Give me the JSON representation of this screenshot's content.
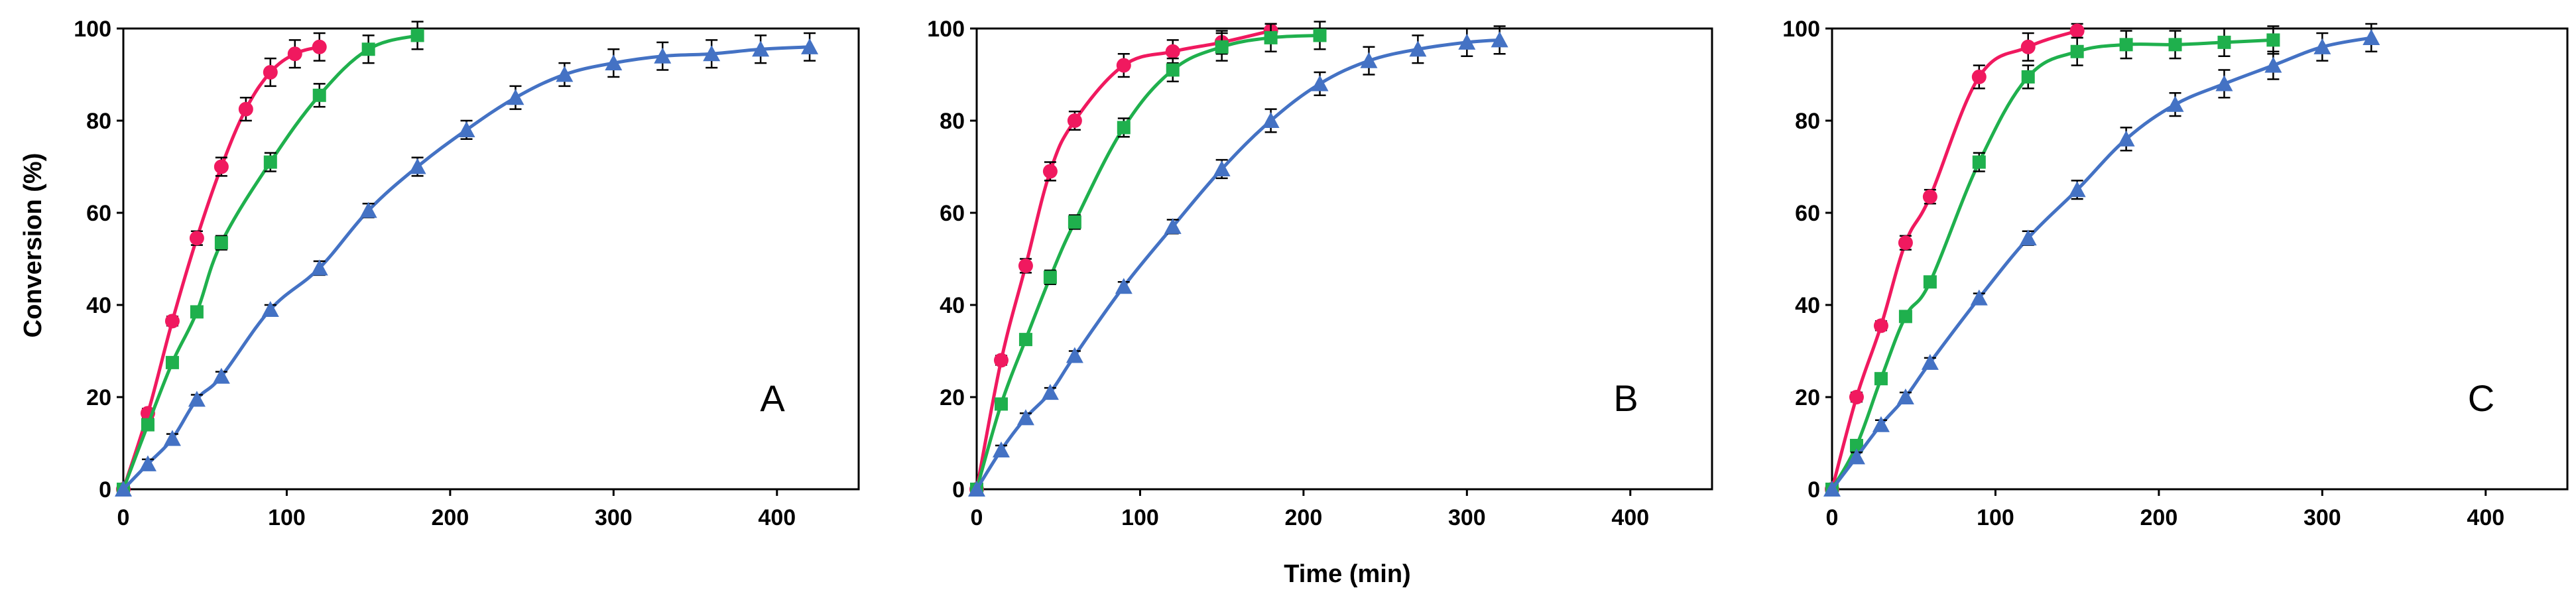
{
  "chart_data": [
    {
      "type": "line",
      "panel_label": "A",
      "xlabel": "",
      "ylabel": "Conversion (%)",
      "xlim": [
        0,
        450
      ],
      "ylim": [
        0,
        100
      ],
      "xticks": [
        "0",
        "100",
        "200",
        "300",
        "400"
      ],
      "yticks": [
        "0",
        "20",
        "40",
        "60",
        "80",
        "100"
      ],
      "series": [
        {
          "name": "circles",
          "marker": "circle",
          "color": "#f0195f",
          "x": [
            0,
            15,
            30,
            45,
            60,
            75,
            90,
            105,
            120
          ],
          "y": [
            0,
            16.5,
            36.5,
            54.5,
            70,
            82.5,
            90.5,
            94.5,
            96
          ],
          "err": [
            0,
            1,
            1,
            1.5,
            2,
            2.5,
            3,
            3,
            3
          ]
        },
        {
          "name": "squares",
          "marker": "square",
          "color": "#1fb04d",
          "x": [
            0,
            15,
            30,
            45,
            60,
            90,
            120,
            150,
            180
          ],
          "y": [
            0,
            14,
            27.5,
            38.5,
            53.5,
            71,
            85.5,
            95.5,
            98.5
          ],
          "err": [
            0,
            1,
            1,
            1,
            1.5,
            2,
            2.5,
            3,
            3
          ]
        },
        {
          "name": "triangles",
          "marker": "triangle",
          "color": "#4472c4",
          "x": [
            0,
            15,
            30,
            45,
            60,
            90,
            120,
            150,
            180,
            210,
            240,
            270,
            300,
            330,
            360,
            390,
            420
          ],
          "y": [
            0,
            5.5,
            11,
            19.5,
            24.5,
            39,
            48,
            60.5,
            70,
            78,
            85,
            90,
            92.5,
            94,
            94.5,
            95.5,
            96
          ],
          "err": [
            0,
            1,
            1,
            1,
            1,
            1,
            1.5,
            1.5,
            2,
            2,
            2.5,
            2.5,
            3,
            3,
            3,
            3,
            3
          ]
        }
      ]
    },
    {
      "type": "line",
      "panel_label": "B",
      "xlabel": "Time (min)",
      "ylabel": "",
      "xlim": [
        0,
        450
      ],
      "ylim": [
        0,
        100
      ],
      "xticks": [
        "0",
        "100",
        "200",
        "300",
        "400"
      ],
      "yticks": [
        "0",
        "20",
        "40",
        "60",
        "80",
        "100"
      ],
      "series": [
        {
          "name": "circles",
          "marker": "circle",
          "color": "#f0195f",
          "x": [
            0,
            15,
            30,
            45,
            60,
            90,
            120,
            150,
            180
          ],
          "y": [
            0,
            28,
            48.5,
            69,
            80,
            92,
            95,
            97,
            99.5
          ],
          "err": [
            0,
            1,
            1.5,
            2,
            2,
            2.5,
            2.5,
            2.5,
            1.5
          ]
        },
        {
          "name": "squares",
          "marker": "square",
          "color": "#1fb04d",
          "x": [
            0,
            15,
            30,
            45,
            60,
            90,
            120,
            150,
            180,
            210
          ],
          "y": [
            0,
            18.5,
            32.5,
            46,
            58,
            78.5,
            91,
            96,
            98,
            98.5
          ],
          "err": [
            0,
            1,
            1,
            1.5,
            1.5,
            2,
            2.5,
            3,
            3,
            3
          ]
        },
        {
          "name": "triangles",
          "marker": "triangle",
          "color": "#4472c4",
          "x": [
            0,
            15,
            30,
            45,
            60,
            90,
            120,
            150,
            180,
            210,
            240,
            270,
            300,
            320
          ],
          "y": [
            0,
            8.5,
            15.5,
            21,
            29,
            44,
            57,
            69.5,
            80,
            88,
            93,
            95.5,
            97,
            97.5
          ],
          "err": [
            0,
            1,
            1,
            1,
            1,
            1,
            1.5,
            2,
            2.5,
            2.5,
            3,
            3,
            3,
            3
          ]
        }
      ]
    },
    {
      "type": "line",
      "panel_label": "C",
      "xlabel": "",
      "ylabel": "",
      "xlim": [
        0,
        450
      ],
      "ylim": [
        0,
        100
      ],
      "xticks": [
        "0",
        "100",
        "200",
        "300",
        "400"
      ],
      "yticks": [
        "0",
        "20",
        "40",
        "60",
        "80",
        "100"
      ],
      "series": [
        {
          "name": "circles",
          "marker": "circle",
          "color": "#f0195f",
          "x": [
            0,
            15,
            30,
            45,
            60,
            90,
            120,
            150
          ],
          "y": [
            0,
            20,
            35.5,
            53.5,
            63.5,
            89.5,
            96,
            99.5
          ],
          "err": [
            0,
            1,
            1,
            1.5,
            1.5,
            2.5,
            3,
            1.5
          ]
        },
        {
          "name": "squares",
          "marker": "square",
          "color": "#1fb04d",
          "x": [
            0,
            15,
            30,
            45,
            60,
            90,
            120,
            150,
            180,
            210,
            240,
            270
          ],
          "y": [
            0,
            9.5,
            24,
            37.5,
            45,
            71,
            89.5,
            95,
            96.5,
            96.5,
            97,
            97.5
          ],
          "err": [
            0,
            1,
            1,
            1,
            1,
            2,
            2.5,
            3,
            3,
            3,
            3,
            3
          ]
        },
        {
          "name": "triangles",
          "marker": "triangle",
          "color": "#4472c4",
          "x": [
            0,
            15,
            30,
            45,
            60,
            90,
            120,
            150,
            180,
            210,
            240,
            270,
            300,
            330
          ],
          "y": [
            0,
            7,
            14,
            20,
            27.5,
            41.5,
            54.5,
            65,
            76,
            83.5,
            88,
            92,
            96,
            98
          ],
          "err": [
            0,
            1,
            1,
            1,
            1,
            1,
            1.5,
            2,
            2.5,
            2.5,
            3,
            3,
            3,
            3
          ]
        }
      ]
    }
  ]
}
